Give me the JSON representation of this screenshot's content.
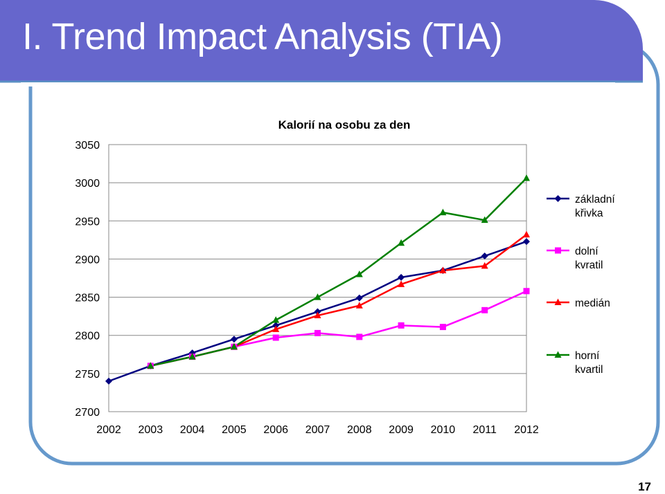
{
  "slide": {
    "title": "I. Trend Impact Analysis (TIA)",
    "page_number": "17",
    "colors": {
      "title_bar": "#6666CC",
      "frame": "#6699CC",
      "title_text": "#FFFFFF"
    }
  },
  "chart_data": {
    "type": "line",
    "title": "Kalorií na osobu za den",
    "xlabel": "",
    "ylabel": "",
    "categories": [
      "2002",
      "2003",
      "2004",
      "2005",
      "2006",
      "2007",
      "2008",
      "2009",
      "2010",
      "2011",
      "2012"
    ],
    "y_ticks": [
      2700,
      2750,
      2800,
      2850,
      2900,
      2950,
      3000,
      3050
    ],
    "ylim": [
      2700,
      3050
    ],
    "grid": "horizontal",
    "legend_position": "right",
    "series": [
      {
        "name": "základní křivka",
        "label_lines": [
          "základní",
          "křivka"
        ],
        "color": "#000080",
        "marker": "diamond",
        "values": [
          2740,
          2760,
          2777,
          2795,
          2813,
          2831,
          2849,
          2876,
          2885,
          2904,
          2923
        ]
      },
      {
        "name": "dolní kvratil",
        "label_lines": [
          "dolní",
          "kvratil"
        ],
        "color": "#FF00FF",
        "marker": "square",
        "values": [
          null,
          2760,
          2772,
          2785,
          2797,
          2803,
          2798,
          2813,
          2811,
          2833,
          2858
        ]
      },
      {
        "name": "medián",
        "label_lines": [
          "medián"
        ],
        "color": "#FF0000",
        "marker": "triangle",
        "values": [
          null,
          2760,
          2772,
          2785,
          2808,
          2826,
          2839,
          2867,
          2885,
          2891,
          2932
        ]
      },
      {
        "name": "horní kvartil",
        "label_lines": [
          "horní",
          "kvartil"
        ],
        "color": "#008000",
        "marker": "triangle",
        "values": [
          null,
          2760,
          2772,
          2785,
          2820,
          2850,
          2880,
          2921,
          2961,
          2951,
          3006
        ]
      }
    ]
  }
}
